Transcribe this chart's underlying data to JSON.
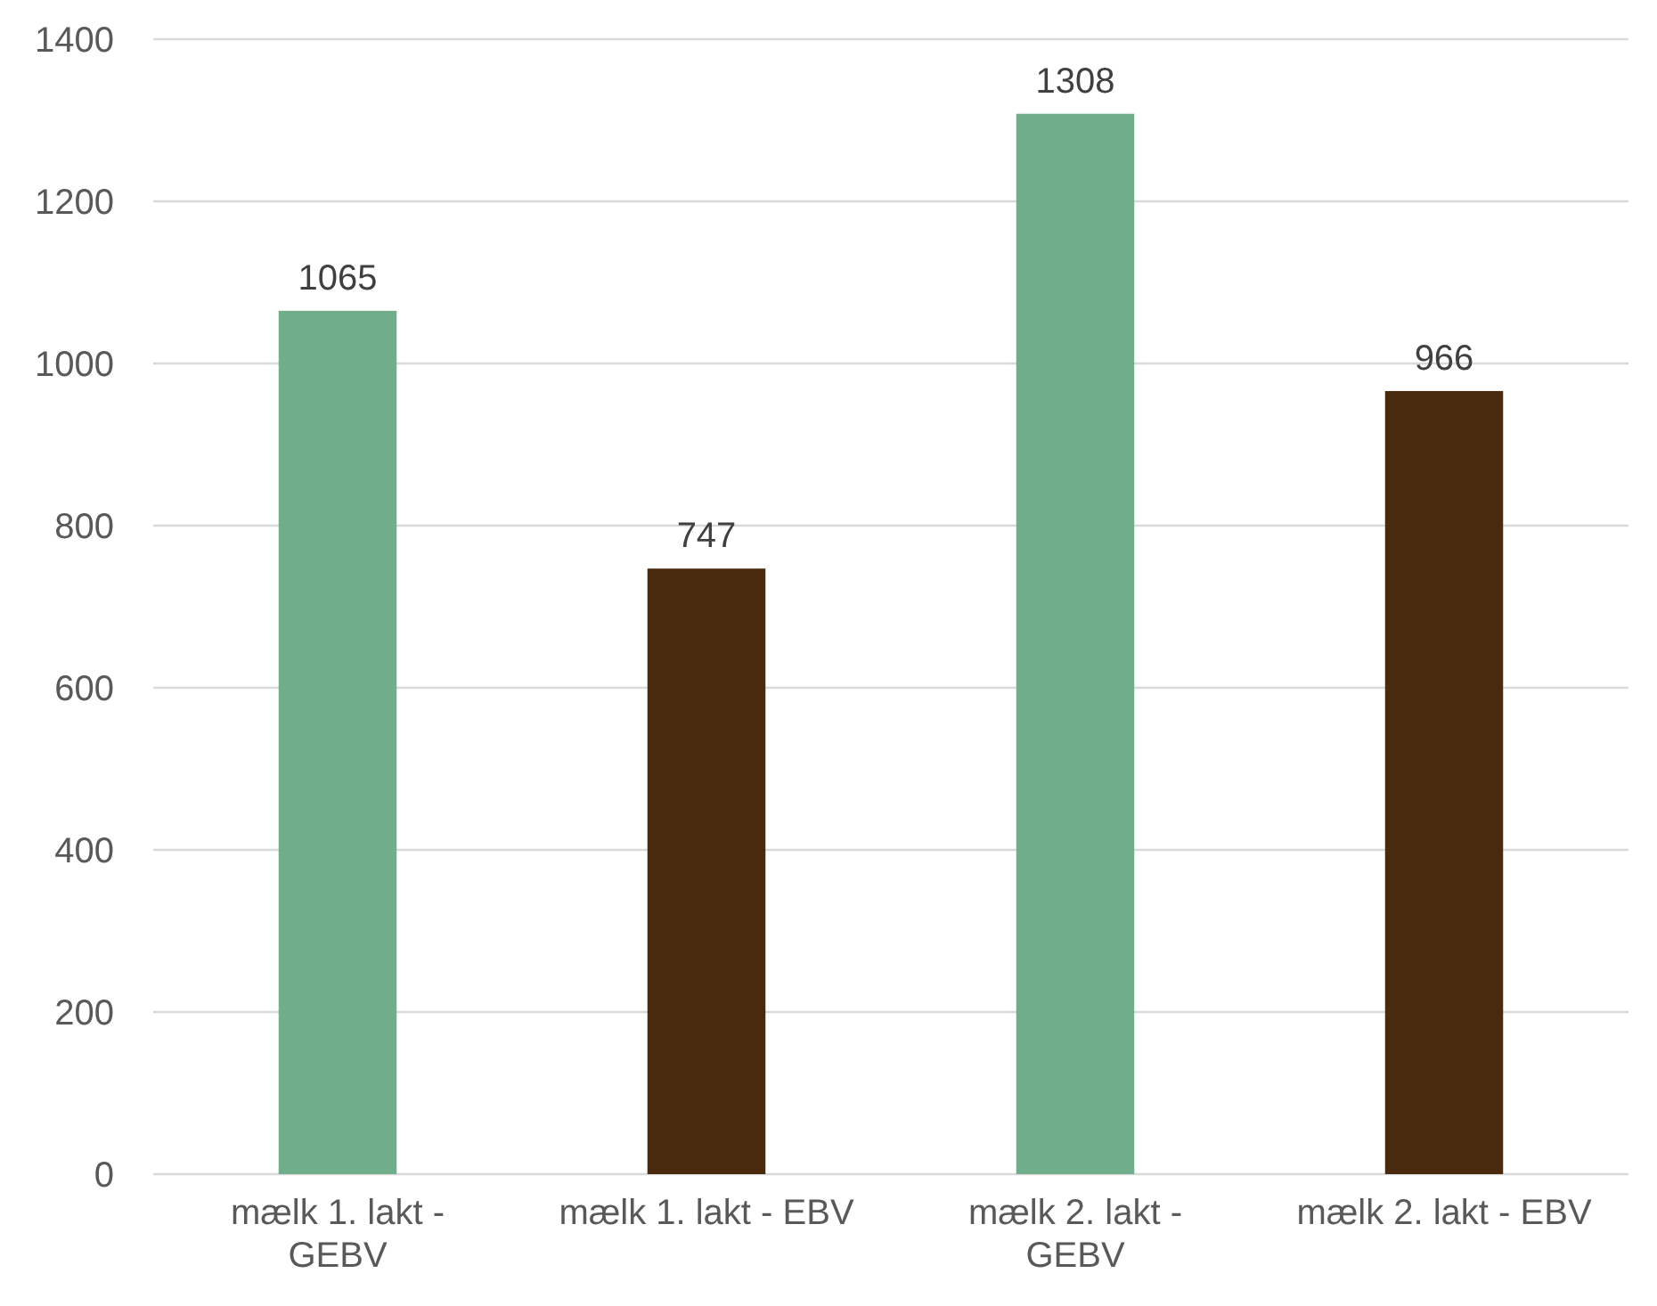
{
  "chart_data": {
    "type": "bar",
    "categories": [
      "mælk 1. lakt - GEBV",
      "mælk 1. lakt - EBV",
      "mælk 2. lakt - GEBV",
      "mælk 2. lakt - EBV"
    ],
    "values": [
      1065,
      747,
      1308,
      966
    ],
    "colors": [
      "#70ad8a",
      "#4a2a0e",
      "#70ad8a",
      "#4a2a0e"
    ],
    "ylim": [
      0,
      1400
    ],
    "yticks": [
      0,
      200,
      400,
      600,
      800,
      1000,
      1200,
      1400
    ],
    "grid": "y",
    "data_labels": true
  }
}
